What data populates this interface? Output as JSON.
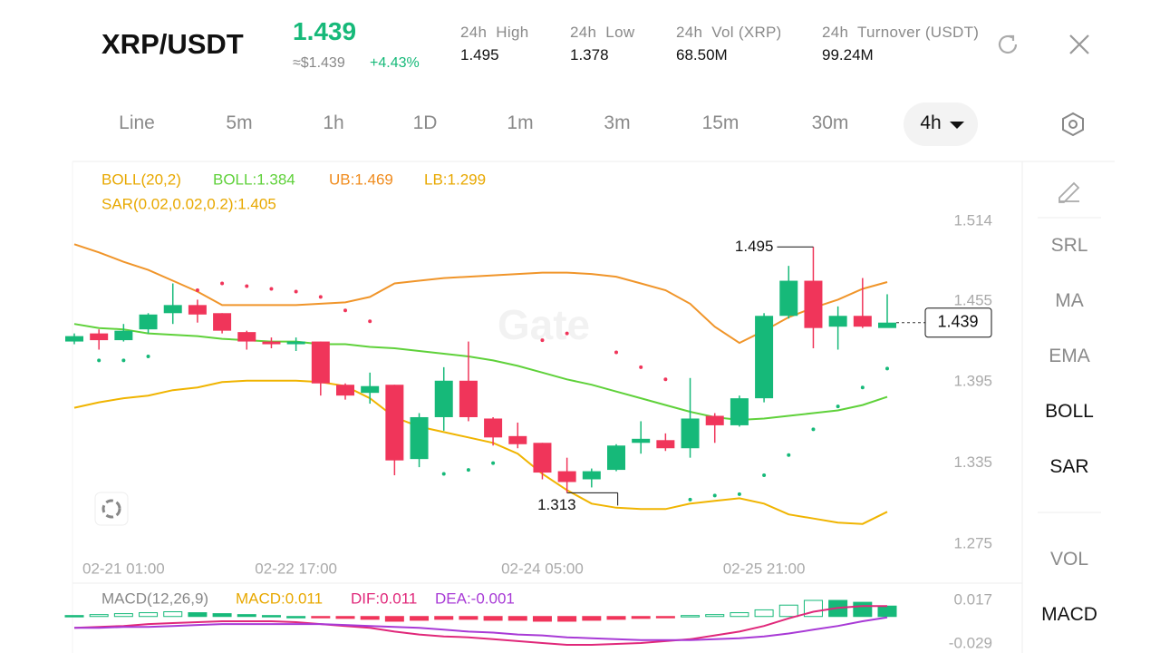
{
  "header": {
    "symbol": "XRP/USDT",
    "price": "1.439",
    "approx": "≈$1.439",
    "change": "+4.43%",
    "stats": [
      {
        "label": "24h  High",
        "value": "1.495"
      },
      {
        "label": "24h  Low",
        "value": "1.378"
      },
      {
        "label": "24h  Vol (XRP)",
        "value": "68.50M"
      },
      {
        "label": "24h  Turnover (USDT)",
        "value": "99.24M"
      }
    ]
  },
  "tabs": [
    {
      "label": "Line",
      "active": false
    },
    {
      "label": "5m",
      "active": false
    },
    {
      "label": "1h",
      "active": false
    },
    {
      "label": "1D",
      "active": false
    },
    {
      "label": "1m",
      "active": false
    },
    {
      "label": "3m",
      "active": false
    },
    {
      "label": "15m",
      "active": false
    },
    {
      "label": "30m",
      "active": false
    },
    {
      "label": "4h",
      "active": true
    }
  ],
  "sidebar": [
    {
      "label": "SRL",
      "active": false
    },
    {
      "label": "MA",
      "active": false
    },
    {
      "label": "EMA",
      "active": false
    },
    {
      "label": "BOLL",
      "active": true
    },
    {
      "label": "SAR",
      "active": true
    },
    {
      "label": "VOL",
      "active": false
    },
    {
      "label": "MACD",
      "active": true
    }
  ],
  "watermark": "Gate",
  "chart_data": {
    "type": "candlestick",
    "legend": [
      {
        "text": "BOLL(20,2)",
        "color": "#e8a800"
      },
      {
        "text": "BOLL:1.384",
        "color": "#5fd13a"
      },
      {
        "text": "UB:1.469",
        "color": "#f08c1e"
      },
      {
        "text": "LB:1.299",
        "color": "#e8a800"
      },
      {
        "text": "SAR(0.02,0.02,0.2):1.405",
        "color": "#e8a800"
      }
    ],
    "up_color": "#16b979",
    "down_color": "#f0355a",
    "categories": [
      null,
      null,
      "02-21 01:00",
      null,
      null,
      null,
      null,
      null,
      null,
      "02-22 17:00",
      null,
      null,
      null,
      null,
      null,
      null,
      null,
      null,
      null,
      "02-24 05:00",
      null,
      null,
      null,
      null,
      null,
      null,
      null,
      null,
      "02-25 21:00",
      null,
      null,
      null,
      null,
      null
    ],
    "open": [
      1.425,
      1.431,
      1.426,
      1.434,
      1.446,
      1.452,
      1.446,
      1.432,
      1.425,
      1.423,
      1.425,
      1.393,
      1.387,
      1.393,
      1.338,
      1.369,
      1.396,
      1.368,
      1.355,
      1.35,
      1.329,
      1.323,
      1.33,
      1.35,
      1.352,
      1.346,
      1.37,
      1.363,
      1.383,
      1.444,
      1.47,
      1.436,
      1.444,
      1.435
    ],
    "high": [
      1.431,
      1.434,
      1.438,
      1.446,
      1.468,
      1.456,
      1.446,
      1.433,
      1.428,
      1.428,
      1.425,
      1.394,
      1.402,
      1.393,
      1.372,
      1.406,
      1.425,
      1.369,
      1.365,
      1.35,
      1.339,
      1.331,
      1.349,
      1.366,
      1.357,
      1.398,
      1.372,
      1.385,
      1.446,
      1.481,
      1.495,
      1.451,
      1.472,
      1.46
    ],
    "low": [
      1.423,
      1.419,
      1.425,
      1.431,
      1.438,
      1.439,
      1.431,
      1.419,
      1.42,
      1.418,
      1.385,
      1.382,
      1.379,
      1.326,
      1.332,
      1.359,
      1.366,
      1.348,
      1.346,
      1.323,
      1.313,
      1.317,
      1.329,
      1.342,
      1.344,
      1.339,
      1.35,
      1.362,
      1.38,
      1.442,
      1.42,
      1.419,
      1.435,
      1.436
    ],
    "close": [
      1.429,
      1.426,
      1.433,
      1.445,
      1.452,
      1.445,
      1.433,
      1.425,
      1.423,
      1.425,
      1.394,
      1.385,
      1.392,
      1.337,
      1.369,
      1.396,
      1.369,
      1.354,
      1.349,
      1.328,
      1.321,
      1.329,
      1.348,
      1.353,
      1.346,
      1.368,
      1.363,
      1.383,
      1.444,
      1.47,
      1.435,
      1.444,
      1.436,
      1.439
    ],
    "bands": [
      {
        "name": "UB",
        "color": "#f0952a",
        "values": [
          1.497,
          1.491,
          1.484,
          1.478,
          1.47,
          1.462,
          1.452,
          1.452,
          1.452,
          1.452,
          1.453,
          1.454,
          1.458,
          1.468,
          1.47,
          1.472,
          1.473,
          1.474,
          1.475,
          1.476,
          1.476,
          1.475,
          1.473,
          1.468,
          1.463,
          1.453,
          1.436,
          1.424,
          1.433,
          1.443,
          1.45,
          1.456,
          1.464,
          1.469
        ]
      },
      {
        "name": "BOLL",
        "color": "#5fd13a",
        "values": [
          1.438,
          1.435,
          1.434,
          1.431,
          1.43,
          1.429,
          1.427,
          1.426,
          1.425,
          1.425,
          1.423,
          1.423,
          1.421,
          1.42,
          1.418,
          1.416,
          1.414,
          1.411,
          1.407,
          1.402,
          1.397,
          1.393,
          1.388,
          1.383,
          1.378,
          1.373,
          1.369,
          1.367,
          1.368,
          1.37,
          1.372,
          1.374,
          1.378,
          1.384
        ]
      },
      {
        "name": "LB",
        "color": "#f0b400",
        "values": [
          1.376,
          1.38,
          1.383,
          1.385,
          1.389,
          1.391,
          1.395,
          1.396,
          1.396,
          1.396,
          1.395,
          1.392,
          1.383,
          1.369,
          1.362,
          1.358,
          1.354,
          1.35,
          1.342,
          1.327,
          1.315,
          1.305,
          1.302,
          1.301,
          1.301,
          1.305,
          1.307,
          1.309,
          1.305,
          1.297,
          1.294,
          1.291,
          1.29,
          1.299
        ]
      }
    ],
    "sar": [
      null,
      1.411,
      1.411,
      1.414,
      null,
      1.463,
      1.468,
      1.466,
      1.464,
      1.462,
      1.458,
      1.448,
      1.44,
      null,
      null,
      1.327,
      1.33,
      1.335,
      null,
      1.426,
      1.431,
      null,
      1.417,
      1.406,
      1.397,
      1.308,
      1.311,
      1.312,
      1.326,
      1.341,
      1.36,
      1.377,
      1.391,
      1.405
    ],
    "ylim": [
      1.275,
      1.514
    ],
    "yticks": [
      1.514,
      1.455,
      1.395,
      1.335,
      1.275
    ],
    "macd": {
      "legend": [
        {
          "text": "MACD(12,26,9)",
          "color": "#888888"
        },
        {
          "text": "MACD:0.011",
          "color": "#e8a800"
        },
        {
          "text": "DIF:0.011",
          "color": "#e0287a"
        },
        {
          "text": "DEA:-0.001",
          "color": "#a83ad6"
        }
      ],
      "hist": [
        0.001,
        0.002,
        0.003,
        0.004,
        0.005,
        0.004,
        0.003,
        0.002,
        0.001,
        0.0,
        -0.001,
        -0.002,
        -0.003,
        -0.005,
        -0.004,
        -0.003,
        -0.003,
        -0.004,
        -0.004,
        -0.005,
        -0.005,
        -0.004,
        -0.003,
        -0.002,
        -0.001,
        0.001,
        0.002,
        0.004,
        0.007,
        0.012,
        0.017,
        0.017,
        0.015,
        0.011
      ],
      "dif": [
        -0.012,
        -0.011,
        -0.01,
        -0.008,
        -0.007,
        -0.006,
        -0.005,
        -0.005,
        -0.005,
        -0.006,
        -0.008,
        -0.01,
        -0.012,
        -0.016,
        -0.019,
        -0.021,
        -0.022,
        -0.024,
        -0.026,
        -0.028,
        -0.03,
        -0.03,
        -0.029,
        -0.028,
        -0.026,
        -0.024,
        -0.02,
        -0.016,
        -0.01,
        -0.002,
        0.005,
        0.009,
        0.011,
        0.011
      ],
      "dea": [
        -0.012,
        -0.012,
        -0.011,
        -0.011,
        -0.01,
        -0.009,
        -0.008,
        -0.008,
        -0.008,
        -0.008,
        -0.008,
        -0.009,
        -0.01,
        -0.011,
        -0.012,
        -0.014,
        -0.016,
        -0.017,
        -0.019,
        -0.02,
        -0.022,
        -0.023,
        -0.024,
        -0.025,
        -0.025,
        -0.025,
        -0.024,
        -0.023,
        -0.021,
        -0.018,
        -0.014,
        -0.01,
        -0.005,
        -0.001
      ],
      "dif_color": "#e0287a",
      "dea_color": "#a83ad6",
      "ylim": [
        -0.029,
        0.017
      ],
      "yticks": [
        0.017,
        -0.029
      ]
    }
  }
}
